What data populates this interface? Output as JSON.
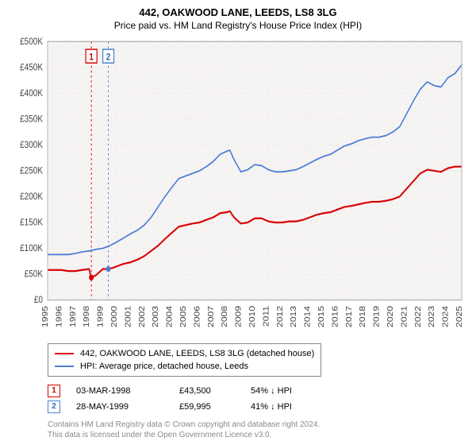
{
  "title": "442, OAKWOOD LANE, LEEDS, LS8 3LG",
  "subtitle": "Price paid vs. HM Land Registry's House Price Index (HPI)",
  "chart": {
    "type": "line",
    "background_color": "#f6f3f3",
    "border_color": "#b5b5b5",
    "grid_color": "#e8e4e4",
    "grid_dash": "1,3",
    "x": {
      "min": 1995,
      "max": 2025,
      "ticks": [
        1995,
        1996,
        1997,
        1998,
        1999,
        2000,
        2001,
        2002,
        2003,
        2004,
        2005,
        2006,
        2007,
        2008,
        2009,
        2010,
        2011,
        2012,
        2013,
        2014,
        2015,
        2016,
        2017,
        2018,
        2019,
        2020,
        2021,
        2022,
        2023,
        2024,
        2025
      ],
      "label_fontsize": 10,
      "label_rotate": -90
    },
    "y": {
      "min": 0,
      "max": 500000,
      "ticks": [
        0,
        50000,
        100000,
        150000,
        200000,
        250000,
        300000,
        350000,
        400000,
        450000,
        500000
      ],
      "tick_labels": [
        "£0",
        "£50K",
        "£100K",
        "£150K",
        "£200K",
        "£250K",
        "£300K",
        "£350K",
        "£400K",
        "£450K",
        "£500K"
      ],
      "label_fontsize": 10
    },
    "series": [
      {
        "id": "property",
        "label": "442, OAKWOOD LANE, LEEDS, LS8 3LG (detached house)",
        "color": "#d90000",
        "stroke_width": 1.8,
        "points": [
          [
            1995.0,
            58000
          ],
          [
            1995.5,
            58000
          ],
          [
            1996.0,
            58000
          ],
          [
            1996.5,
            56000
          ],
          [
            1997.0,
            56000
          ],
          [
            1997.5,
            58000
          ],
          [
            1998.0,
            60000
          ],
          [
            1998.17,
            43500
          ],
          [
            1998.5,
            48000
          ],
          [
            1999.0,
            60000
          ],
          [
            1999.4,
            59995
          ],
          [
            1999.7,
            62000
          ],
          [
            2000.0,
            65000
          ],
          [
            2000.5,
            70000
          ],
          [
            2001.0,
            73000
          ],
          [
            2001.5,
            78000
          ],
          [
            2002.0,
            85000
          ],
          [
            2002.5,
            95000
          ],
          [
            2003.0,
            105000
          ],
          [
            2003.5,
            118000
          ],
          [
            2004.0,
            130000
          ],
          [
            2004.5,
            142000
          ],
          [
            2005.0,
            145000
          ],
          [
            2005.5,
            148000
          ],
          [
            2006.0,
            150000
          ],
          [
            2006.5,
            155000
          ],
          [
            2007.0,
            160000
          ],
          [
            2007.5,
            168000
          ],
          [
            2008.0,
            170000
          ],
          [
            2008.2,
            172000
          ],
          [
            2008.5,
            160000
          ],
          [
            2009.0,
            148000
          ],
          [
            2009.5,
            150000
          ],
          [
            2010.0,
            158000
          ],
          [
            2010.5,
            158000
          ],
          [
            2011.0,
            152000
          ],
          [
            2011.5,
            150000
          ],
          [
            2012.0,
            150000
          ],
          [
            2012.5,
            152000
          ],
          [
            2013.0,
            152000
          ],
          [
            2013.5,
            155000
          ],
          [
            2014.0,
            160000
          ],
          [
            2014.5,
            165000
          ],
          [
            2015.0,
            168000
          ],
          [
            2015.5,
            170000
          ],
          [
            2016.0,
            175000
          ],
          [
            2016.5,
            180000
          ],
          [
            2017.0,
            182000
          ],
          [
            2017.5,
            185000
          ],
          [
            2018.0,
            188000
          ],
          [
            2018.5,
            190000
          ],
          [
            2019.0,
            190000
          ],
          [
            2019.5,
            192000
          ],
          [
            2020.0,
            195000
          ],
          [
            2020.5,
            200000
          ],
          [
            2021.0,
            215000
          ],
          [
            2021.5,
            230000
          ],
          [
            2022.0,
            245000
          ],
          [
            2022.5,
            252000
          ],
          [
            2023.0,
            250000
          ],
          [
            2023.5,
            248000
          ],
          [
            2024.0,
            255000
          ],
          [
            2024.5,
            258000
          ],
          [
            2025.0,
            258000
          ]
        ]
      },
      {
        "id": "hpi",
        "label": "HPI: Average price, detached house, Leeds",
        "color": "#4a7fd6",
        "stroke_width": 1.5,
        "points": [
          [
            1995.0,
            88000
          ],
          [
            1995.5,
            88000
          ],
          [
            1996.0,
            88000
          ],
          [
            1996.5,
            88000
          ],
          [
            1997.0,
            90000
          ],
          [
            1997.5,
            93000
          ],
          [
            1998.0,
            95000
          ],
          [
            1998.5,
            98000
          ],
          [
            1999.0,
            100000
          ],
          [
            1999.5,
            105000
          ],
          [
            2000.0,
            112000
          ],
          [
            2000.5,
            120000
          ],
          [
            2001.0,
            128000
          ],
          [
            2001.5,
            135000
          ],
          [
            2002.0,
            145000
          ],
          [
            2002.5,
            160000
          ],
          [
            2003.0,
            180000
          ],
          [
            2003.5,
            200000
          ],
          [
            2004.0,
            218000
          ],
          [
            2004.5,
            235000
          ],
          [
            2005.0,
            240000
          ],
          [
            2005.5,
            245000
          ],
          [
            2006.0,
            250000
          ],
          [
            2006.5,
            258000
          ],
          [
            2007.0,
            268000
          ],
          [
            2007.5,
            282000
          ],
          [
            2008.0,
            288000
          ],
          [
            2008.2,
            290000
          ],
          [
            2008.5,
            272000
          ],
          [
            2009.0,
            248000
          ],
          [
            2009.5,
            252000
          ],
          [
            2010.0,
            262000
          ],
          [
            2010.5,
            260000
          ],
          [
            2011.0,
            252000
          ],
          [
            2011.5,
            248000
          ],
          [
            2012.0,
            248000
          ],
          [
            2012.5,
            250000
          ],
          [
            2013.0,
            252000
          ],
          [
            2013.5,
            258000
          ],
          [
            2014.0,
            265000
          ],
          [
            2014.5,
            272000
          ],
          [
            2015.0,
            278000
          ],
          [
            2015.5,
            282000
          ],
          [
            2016.0,
            290000
          ],
          [
            2016.5,
            298000
          ],
          [
            2017.0,
            302000
          ],
          [
            2017.5,
            308000
          ],
          [
            2018.0,
            312000
          ],
          [
            2018.5,
            315000
          ],
          [
            2019.0,
            315000
          ],
          [
            2019.5,
            318000
          ],
          [
            2020.0,
            325000
          ],
          [
            2020.5,
            335000
          ],
          [
            2021.0,
            360000
          ],
          [
            2021.5,
            385000
          ],
          [
            2022.0,
            408000
          ],
          [
            2022.5,
            422000
          ],
          [
            2023.0,
            415000
          ],
          [
            2023.5,
            412000
          ],
          [
            2024.0,
            430000
          ],
          [
            2024.5,
            438000
          ],
          [
            2025.0,
            455000
          ]
        ]
      }
    ],
    "sale_markers": [
      {
        "n": "1",
        "x": 1998.17,
        "y": 43500,
        "line_color": "#d90000",
        "box_border": "#d90000",
        "box_fill": "#ffffff",
        "text_color": "#c00000"
      },
      {
        "n": "2",
        "x": 1999.4,
        "y": 59995,
        "line_color": "#4a7fd6",
        "box_border": "#4a7fd6",
        "box_fill": "#ffffff",
        "text_color": "#3a6ac0"
      }
    ]
  },
  "legend": {
    "border_color": "#888888",
    "rows": [
      {
        "color": "#d90000",
        "label": "442, OAKWOOD LANE, LEEDS, LS8 3LG (detached house)"
      },
      {
        "color": "#4a7fd6",
        "label": "HPI: Average price, detached house, Leeds"
      }
    ]
  },
  "sales_table": [
    {
      "n": "1",
      "border": "#d90000",
      "text": "#c00000",
      "date": "03-MAR-1998",
      "price": "£43,500",
      "pct": "54% ↓ HPI"
    },
    {
      "n": "2",
      "border": "#4a7fd6",
      "text": "#3a6ac0",
      "date": "28-MAY-1999",
      "price": "£59,995",
      "pct": "41% ↓ HPI"
    }
  ],
  "footer_line1": "Contains HM Land Registry data © Crown copyright and database right 2024.",
  "footer_line2": "This data is licensed under the Open Government Licence v3.0.",
  "colors": {
    "text": "#333333",
    "footer_text": "#8a8a8a"
  }
}
